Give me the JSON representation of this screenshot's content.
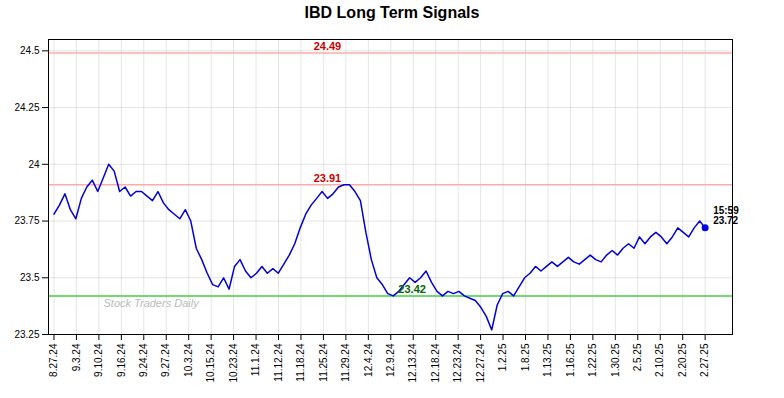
{
  "chart_data": {
    "type": "line",
    "title": "IBD Long Term Signals",
    "x": [
      0,
      1,
      2,
      3,
      4,
      5,
      6,
      7,
      8,
      9,
      10,
      11,
      12,
      13,
      14,
      15,
      16,
      17,
      18,
      19,
      20,
      21,
      22,
      23,
      24,
      25,
      26,
      27,
      28,
      29,
      30,
      31,
      32,
      33,
      34,
      35,
      36,
      37,
      38,
      39,
      40,
      41,
      42,
      43,
      44,
      45,
      46,
      47,
      48,
      49,
      50,
      51,
      52,
      53,
      54,
      55,
      56,
      57,
      58,
      59,
      60,
      61,
      62,
      63,
      64,
      65,
      66,
      67,
      68,
      69,
      70,
      71,
      72,
      73,
      74,
      75,
      76,
      77,
      78,
      79,
      80,
      81,
      82,
      83,
      84,
      85,
      86,
      87,
      88,
      89,
      90,
      91,
      92,
      93,
      94,
      95,
      96,
      97,
      98,
      99,
      100,
      101,
      102,
      103,
      104,
      105,
      106,
      107,
      108,
      109,
      110,
      111,
      112,
      113,
      114,
      115,
      116,
      117,
      118,
      119
    ],
    "values": [
      23.78,
      23.82,
      23.87,
      23.8,
      23.76,
      23.85,
      23.9,
      23.93,
      23.88,
      23.94,
      24.0,
      23.97,
      23.88,
      23.9,
      23.86,
      23.88,
      23.88,
      23.86,
      23.84,
      23.88,
      23.83,
      23.8,
      23.78,
      23.76,
      23.8,
      23.75,
      23.63,
      23.58,
      23.52,
      23.47,
      23.46,
      23.5,
      23.45,
      23.55,
      23.58,
      23.53,
      23.5,
      23.52,
      23.55,
      23.52,
      23.54,
      23.52,
      23.56,
      23.6,
      23.65,
      23.72,
      23.78,
      23.82,
      23.85,
      23.88,
      23.85,
      23.87,
      23.9,
      23.91,
      23.91,
      23.88,
      23.84,
      23.7,
      23.58,
      23.5,
      23.47,
      23.43,
      23.42,
      23.44,
      23.47,
      23.5,
      23.48,
      23.5,
      23.53,
      23.48,
      23.44,
      23.42,
      23.44,
      23.43,
      23.44,
      23.42,
      23.41,
      23.4,
      23.37,
      23.33,
      23.27,
      23.38,
      23.43,
      23.44,
      23.42,
      23.46,
      23.5,
      23.52,
      23.55,
      23.53,
      23.55,
      23.57,
      23.55,
      23.57,
      23.59,
      23.57,
      23.56,
      23.58,
      23.6,
      23.58,
      23.57,
      23.6,
      23.62,
      23.6,
      23.63,
      23.65,
      23.63,
      23.68,
      23.65,
      23.68,
      23.7,
      23.68,
      23.65,
      23.68,
      23.72,
      23.7,
      23.68,
      23.72,
      23.75,
      23.72
    ],
    "color": "#0000dd",
    "xlim": [
      -1,
      124
    ],
    "xticks": [
      {
        "value": 0,
        "label": "8.27.24"
      },
      {
        "value": 4.103448,
        "label": "9.3.24"
      },
      {
        "value": 8.206897,
        "label": "9.10.24"
      },
      {
        "value": 12.310345,
        "label": "9.16.24"
      },
      {
        "value": 16.413793,
        "label": "9.24.24"
      },
      {
        "value": 20.517241,
        "label": "9.27.24"
      },
      {
        "value": 24.62069,
        "label": "10.3.24"
      },
      {
        "value": 28.724138,
        "label": "10.15.24"
      },
      {
        "value": 32.827586,
        "label": "10.23.24"
      },
      {
        "value": 36.931034,
        "label": "11.1.24"
      },
      {
        "value": 41.034483,
        "label": "11.12.24"
      },
      {
        "value": 45.137931,
        "label": "11.18.24"
      },
      {
        "value": 49.241379,
        "label": "11.25.24"
      },
      {
        "value": 53.344828,
        "label": "11.29.24"
      },
      {
        "value": 57.448276,
        "label": "12.4.24"
      },
      {
        "value": 61.551724,
        "label": "12.9.24"
      },
      {
        "value": 65.655172,
        "label": "12.13.24"
      },
      {
        "value": 69.758621,
        "label": "12.18.24"
      },
      {
        "value": 73.862069,
        "label": "12.23.24"
      },
      {
        "value": 77.965517,
        "label": "12.27.24"
      },
      {
        "value": 82.068966,
        "label": "1.2.25"
      },
      {
        "value": 86.172414,
        "label": "1.8.25"
      },
      {
        "value": 90.275862,
        "label": "1.13.25"
      },
      {
        "value": 94.37931,
        "label": "1.16.25"
      },
      {
        "value": 98.482759,
        "label": "1.22.25"
      },
      {
        "value": 102.586207,
        "label": "1.30.25"
      },
      {
        "value": 106.689655,
        "label": "2.5.25"
      },
      {
        "value": 110.793103,
        "label": "2.10.25"
      },
      {
        "value": 114.896552,
        "label": "2.20.25"
      },
      {
        "value": 119,
        "label": "2.27.25"
      }
    ],
    "ylim": [
      23.25,
      24.55
    ],
    "yticks": [
      23.25,
      23.5,
      23.75,
      24,
      24.25,
      24.5
    ],
    "grid": true,
    "hlines": [
      {
        "value": 24.49,
        "label": "24.49",
        "color": "#ffaaaa",
        "label_color": "#cc0000"
      },
      {
        "value": 23.91,
        "label": "23.91",
        "color": "#ffaaaa",
        "label_color": "#cc0000"
      },
      {
        "value": 23.42,
        "label": "23.42",
        "color": "#44cc44",
        "label_color": "#006600"
      }
    ],
    "annotations": [
      {
        "text": "15:59\n23.72",
        "x": 119,
        "y": 23.72
      }
    ],
    "watermark": "Stock Traders Daily"
  }
}
